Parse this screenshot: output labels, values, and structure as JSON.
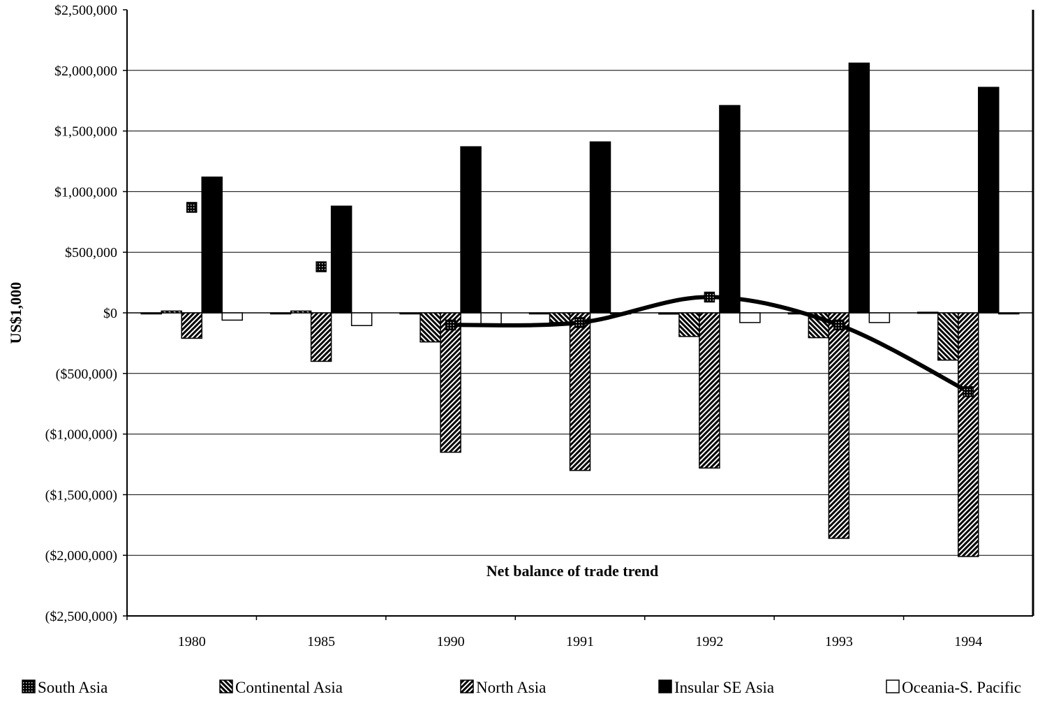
{
  "chart_data": {
    "type": "bar",
    "title": "",
    "annotation": "Net balance of trade trend",
    "xlabel": "",
    "ylabel": "US$1,000",
    "ylim": [
      -2500000,
      2500000
    ],
    "yticks": [
      2500000,
      2000000,
      1500000,
      1000000,
      500000,
      0,
      -500000,
      -1000000,
      -1500000,
      -2000000,
      -2500000
    ],
    "ytick_labels": [
      "$2,500,000",
      "$2,000,000",
      "$1,500,000",
      "$1,000,000",
      "$500,000",
      "$0",
      "($500,000)",
      "($1,000,000)",
      "($1,500,000)",
      "($2,000,000)",
      "($2,500,000)"
    ],
    "grid": true,
    "legend_position": "bottom",
    "categories": [
      "1980",
      "1985",
      "1990",
      "1991",
      "1992",
      "1993",
      "1994"
    ],
    "series": [
      {
        "name": "South Asia",
        "pattern": "crosshatch",
        "values": [
          -5000,
          -5000,
          0,
          0,
          -10000,
          0,
          5000
        ]
      },
      {
        "name": "Continental Asia",
        "pattern": "backslash-hatch",
        "values": [
          15000,
          15000,
          -240000,
          -80000,
          -195000,
          -205000,
          -390000
        ]
      },
      {
        "name": "North Asia",
        "pattern": "slash-hatch",
        "values": [
          -210000,
          -400000,
          -1150000,
          -1300000,
          -1280000,
          -1860000,
          -2010000
        ]
      },
      {
        "name": "Insular SE Asia",
        "pattern": "solid-black",
        "values": [
          1120000,
          880000,
          1370000,
          1410000,
          1710000,
          2060000,
          1860000
        ]
      },
      {
        "name": "Oceania-S. Pacific",
        "pattern": "white",
        "values": [
          -60000,
          -105000,
          -100000,
          0,
          -80000,
          -80000,
          0
        ]
      }
    ],
    "trend": {
      "type": "line",
      "smooth": true,
      "values": [
        870000,
        380000,
        -100000,
        -80000,
        130000,
        -100000,
        -650000
      ],
      "line_from_category": "1990",
      "color": "#000000"
    }
  }
}
